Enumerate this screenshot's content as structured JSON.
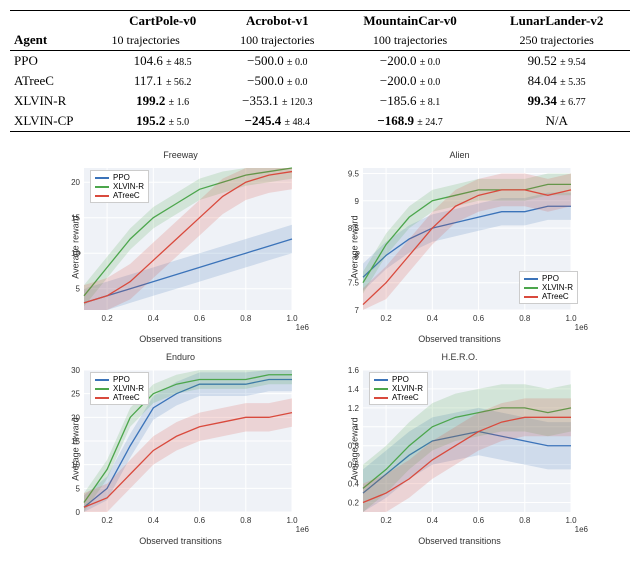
{
  "table": {
    "header_agent": "Agent",
    "envs": [
      {
        "name": "CartPole-v0",
        "traj": "10 trajectories"
      },
      {
        "name": "Acrobot-v1",
        "traj": "100 trajectories"
      },
      {
        "name": "MountainCar-v0",
        "traj": "100 trajectories"
      },
      {
        "name": "LunarLander-v2",
        "traj": "250 trajectories"
      }
    ],
    "rows": [
      {
        "agent": "PPO",
        "cells": [
          {
            "v": "104.6",
            "s": "± 48.5",
            "b": false
          },
          {
            "v": "−500.0",
            "s": "± 0.0",
            "b": false
          },
          {
            "v": "−200.0",
            "s": "± 0.0",
            "b": false
          },
          {
            "v": "90.52",
            "s": "± 9.54",
            "b": false
          }
        ]
      },
      {
        "agent": "ATreeC",
        "cells": [
          {
            "v": "117.1",
            "s": "± 56.2",
            "b": false
          },
          {
            "v": "−500.0",
            "s": "± 0.0",
            "b": false
          },
          {
            "v": "−200.0",
            "s": "± 0.0",
            "b": false
          },
          {
            "v": "84.04",
            "s": "± 5.35",
            "b": false
          }
        ]
      },
      {
        "agent": "XLVIN-R",
        "cells": [
          {
            "v": "199.2",
            "s": "± 1.6",
            "b": true
          },
          {
            "v": "−353.1",
            "s": "± 120.3",
            "b": false
          },
          {
            "v": "−185.6",
            "s": "± 8.1",
            "b": false
          },
          {
            "v": "99.34",
            "s": "± 6.77",
            "b": true
          }
        ]
      },
      {
        "agent": "XLVIN-CP",
        "cells": [
          {
            "v": "195.2",
            "s": "± 5.0",
            "b": true
          },
          {
            "v": "−245.4",
            "s": "± 48.4",
            "b": true
          },
          {
            "v": "−168.9",
            "s": "± 24.7",
            "b": true
          },
          {
            "v": "N/A",
            "s": "",
            "b": false
          }
        ]
      }
    ]
  },
  "colors": {
    "ppo": "#3b73b9",
    "xlvin": "#4ca64c",
    "atreec": "#d94a3d",
    "grid": "#ffffff",
    "panel": "#eff2f7",
    "axis": "#666"
  },
  "charts": [
    {
      "title": "Freeway",
      "ylabel": "Average reward",
      "xlabel": "Observed transitions",
      "sci": "1e6",
      "legend_pos": "top-left",
      "ylim": [
        2,
        22
      ],
      "yticks": [
        5,
        10,
        15,
        20
      ],
      "xlim": [
        0.1,
        1.0
      ],
      "xticks": [
        0.2,
        0.4,
        0.6,
        0.8,
        1.0
      ],
      "series": {
        "ppo": {
          "y": [
            3,
            4,
            5,
            6,
            7,
            8,
            9,
            10,
            11,
            12
          ],
          "band": 2
        },
        "xlvin": {
          "y": [
            4,
            8,
            12,
            15,
            17,
            19,
            20,
            21,
            21.5,
            22
          ],
          "band": 1.5
        },
        "atreec": {
          "y": [
            3,
            4,
            6,
            9,
            12,
            15,
            18,
            20,
            21,
            21.5
          ],
          "band": 2.5
        }
      }
    },
    {
      "title": "Alien",
      "ylabel": "Average reward",
      "xlabel": "Observed transitions",
      "sci": "1e6",
      "legend_pos": "bottom-right",
      "ylim": [
        7.0,
        9.6
      ],
      "yticks": [
        7.0,
        7.5,
        8.0,
        8.5,
        9.0,
        9.5
      ],
      "xlim": [
        0.1,
        1.0
      ],
      "xticks": [
        0.2,
        0.4,
        0.6,
        0.8,
        1.0
      ],
      "series": {
        "ppo": {
          "y": [
            7.6,
            8.0,
            8.3,
            8.5,
            8.6,
            8.7,
            8.8,
            8.8,
            8.9,
            8.9
          ],
          "band": 0.25
        },
        "xlvin": {
          "y": [
            7.5,
            8.2,
            8.7,
            9.0,
            9.1,
            9.2,
            9.2,
            9.2,
            9.3,
            9.3
          ],
          "band": 0.2
        },
        "atreec": {
          "y": [
            7.1,
            7.5,
            8.0,
            8.5,
            8.9,
            9.1,
            9.2,
            9.2,
            9.1,
            9.2
          ],
          "band": 0.3
        }
      }
    },
    {
      "title": "Enduro",
      "ylabel": "Average reward",
      "xlabel": "Observed transitions",
      "sci": "1e6",
      "legend_pos": "top-left",
      "ylim": [
        0,
        30
      ],
      "yticks": [
        0,
        5,
        10,
        15,
        20,
        25,
        30
      ],
      "xlim": [
        0.1,
        1.0
      ],
      "xticks": [
        0.2,
        0.4,
        0.6,
        0.8,
        1.0
      ],
      "series": {
        "ppo": {
          "y": [
            1,
            5,
            14,
            22,
            25,
            27,
            27,
            27,
            28,
            28
          ],
          "band": 2.5
        },
        "xlvin": {
          "y": [
            2,
            9,
            20,
            25,
            27,
            28,
            28,
            28,
            29,
            29
          ],
          "band": 2
        },
        "atreec": {
          "y": [
            1,
            3,
            8,
            13,
            16,
            18,
            19,
            20,
            20,
            21
          ],
          "band": 3
        }
      }
    },
    {
      "title": "H.E.R.O.",
      "ylabel": "Average reward",
      "xlabel": "Observed transitions",
      "sci": "1e6",
      "legend_pos": "top-left",
      "ylim": [
        0.1,
        1.6
      ],
      "yticks": [
        0.2,
        0.4,
        0.6,
        0.8,
        1.0,
        1.2,
        1.4,
        1.6
      ],
      "xlim": [
        0.1,
        1.0
      ],
      "xticks": [
        0.2,
        0.4,
        0.6,
        0.8,
        1.0
      ],
      "series": {
        "ppo": {
          "y": [
            0.3,
            0.5,
            0.7,
            0.85,
            0.9,
            0.95,
            0.9,
            0.85,
            0.8,
            0.8
          ],
          "band": 0.25
        },
        "xlvin": {
          "y": [
            0.35,
            0.55,
            0.8,
            1.0,
            1.1,
            1.15,
            1.2,
            1.2,
            1.15,
            1.2
          ],
          "band": 0.25
        },
        "atreec": {
          "y": [
            0.2,
            0.3,
            0.45,
            0.65,
            0.8,
            0.95,
            1.05,
            1.1,
            1.1,
            1.1
          ],
          "band": 0.2
        }
      }
    }
  ],
  "legend_labels": {
    "ppo": "PPO",
    "xlvin": "XLVIN-R",
    "atreec": "ATreeC"
  }
}
